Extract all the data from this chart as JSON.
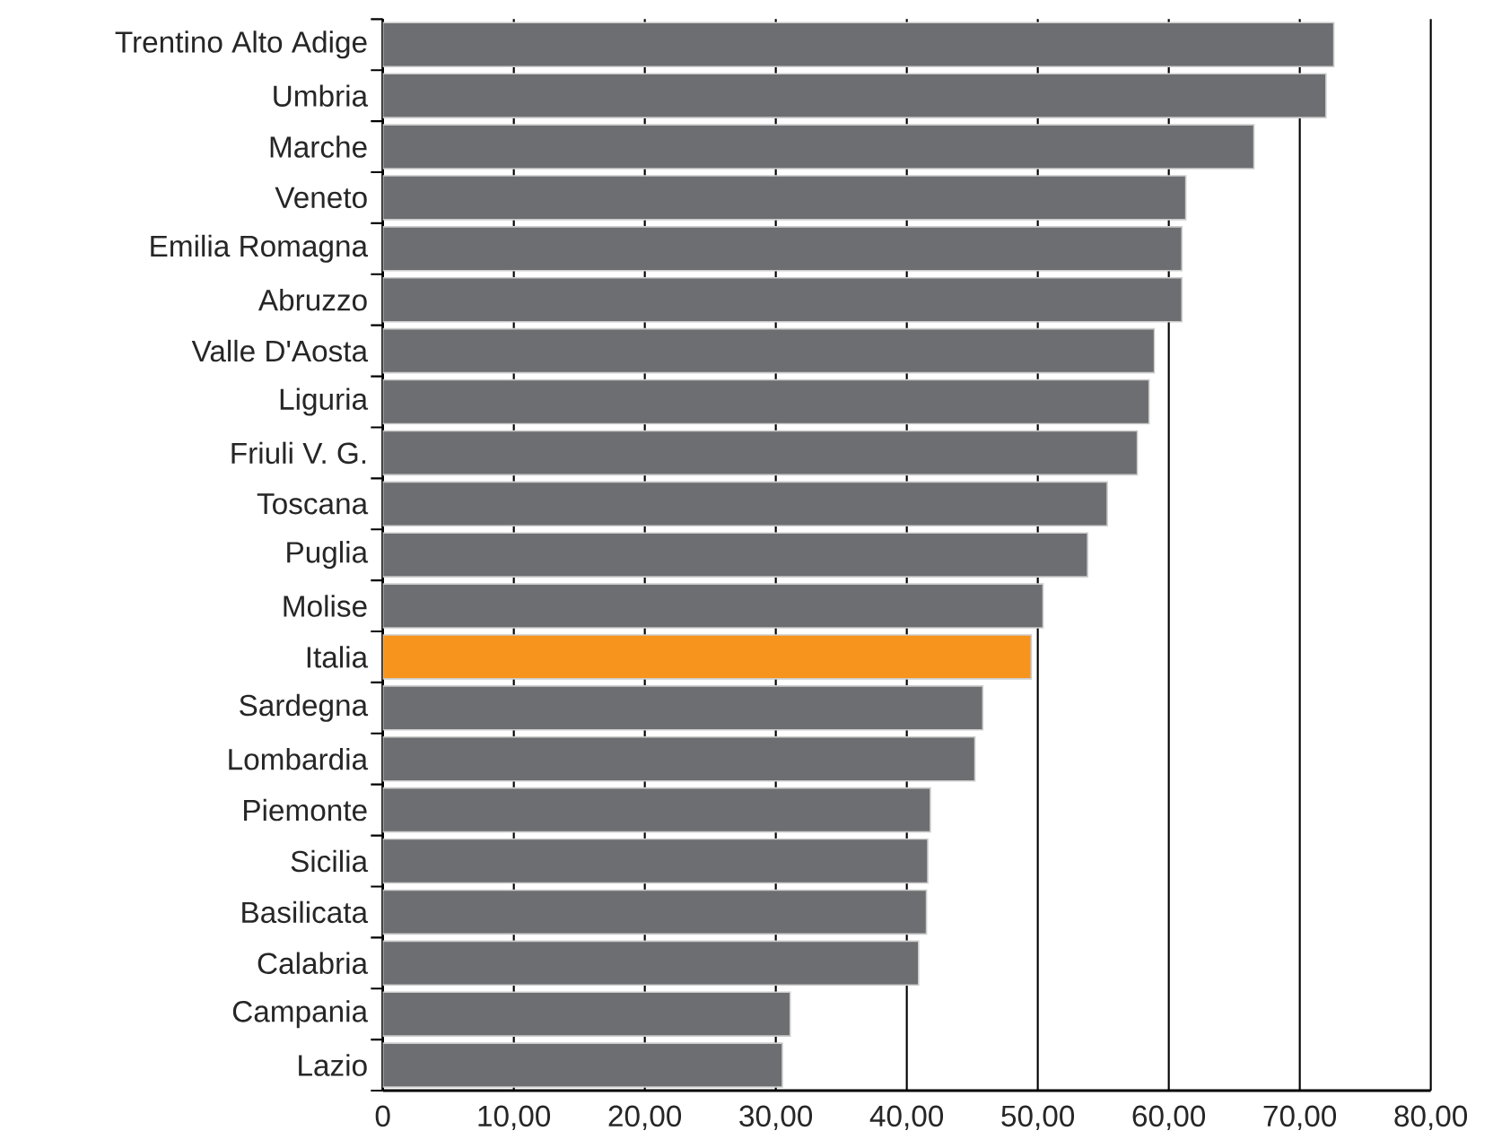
{
  "chart_data": {
    "type": "bar",
    "orientation": "horizontal",
    "categories": [
      "Trentino Alto Adige",
      "Umbria",
      "Marche",
      "Veneto",
      "Emilia Romagna",
      "Abruzzo",
      "Valle D'Aosta",
      "Liguria",
      "Friuli V. G.",
      "Toscana",
      "Puglia",
      "Molise",
      "Italia",
      "Sardegna",
      "Lombardia",
      "Piemonte",
      "Sicilia",
      "Basilicata",
      "Calabria",
      "Campania",
      "Lazio"
    ],
    "values": [
      72.6,
      72.0,
      66.5,
      61.3,
      61.0,
      61.0,
      58.9,
      58.5,
      57.6,
      55.3,
      53.8,
      50.4,
      49.5,
      45.8,
      45.2,
      41.8,
      41.6,
      41.5,
      40.9,
      31.1,
      30.5
    ],
    "colors": [
      "#6d6e71",
      "#6d6e71",
      "#6d6e71",
      "#6d6e71",
      "#6d6e71",
      "#6d6e71",
      "#6d6e71",
      "#6d6e71",
      "#6d6e71",
      "#6d6e71",
      "#6d6e71",
      "#6d6e71",
      "#f7941d",
      "#6d6e71",
      "#6d6e71",
      "#6d6e71",
      "#6d6e71",
      "#6d6e71",
      "#6d6e71",
      "#6d6e71",
      "#6d6e71"
    ],
    "xlim": [
      0,
      80
    ],
    "xticks": [
      0,
      {
        "value": 10,
        "label": "10,00"
      },
      {
        "value": 20,
        "label": "20,00"
      },
      {
        "value": 30,
        "label": "30,00"
      },
      {
        "value": 40,
        "label": "40,00"
      },
      {
        "value": 50,
        "label": "50,00"
      },
      {
        "value": 60,
        "label": "60,00"
      },
      {
        "value": 70,
        "label": "70,00"
      },
      {
        "value": 80,
        "label": "80,00"
      }
    ],
    "grid": "x"
  }
}
